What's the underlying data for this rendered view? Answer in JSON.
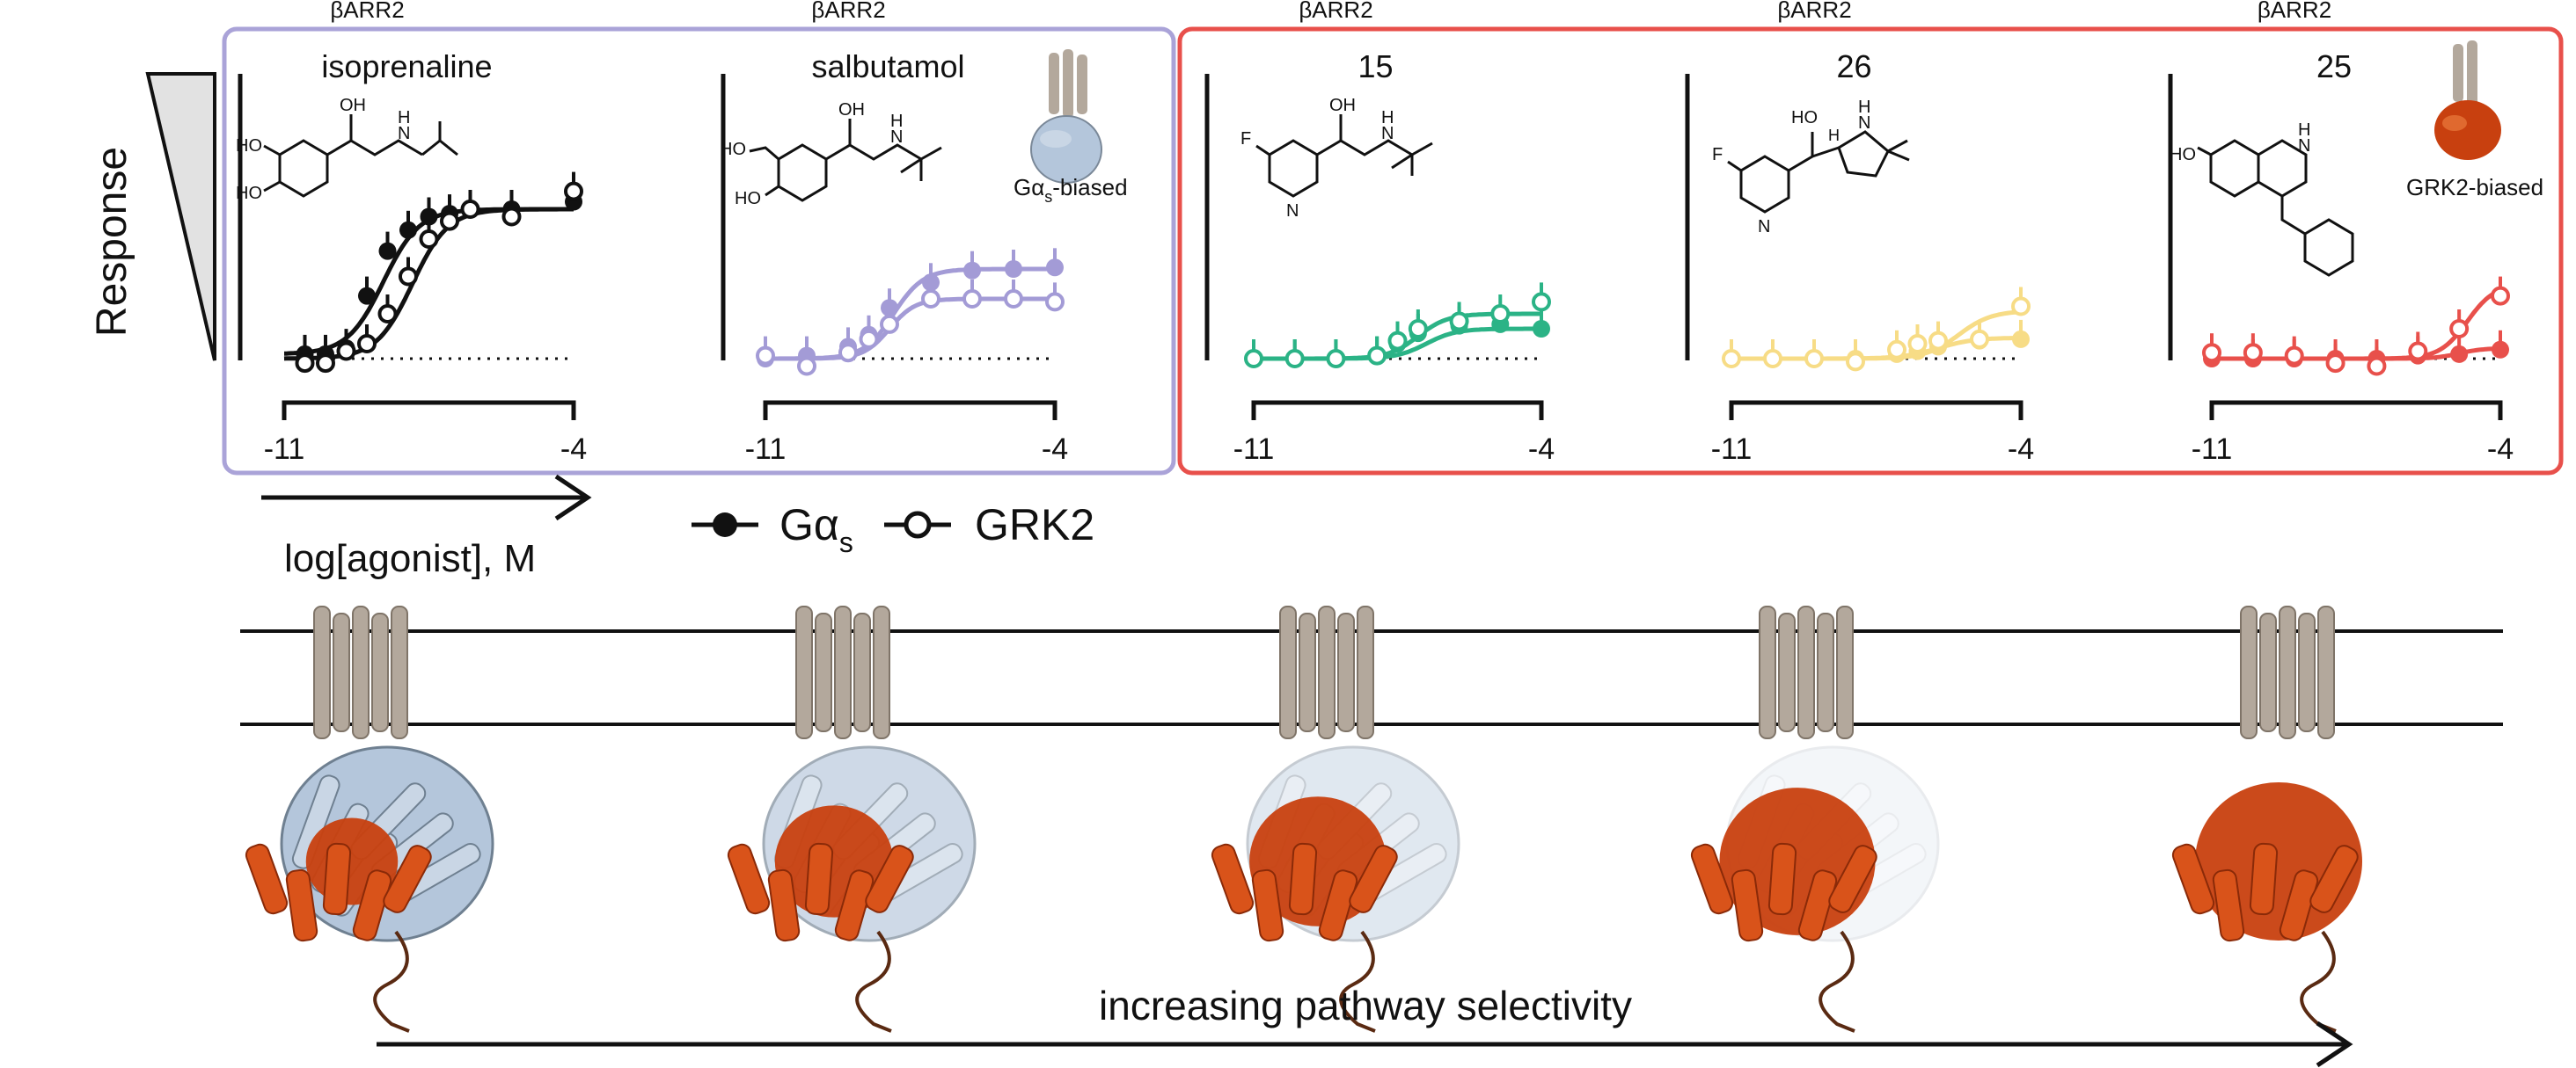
{
  "colors": {
    "isoprenaline": "#111111",
    "salbutamol": "#a39bd6",
    "c15": "#2bb386",
    "c26": "#f7dc86",
    "c25": "#e8504b",
    "box_left": "#aaa3d8",
    "box_right": "#e8504b",
    "receptor": "#b3a89c",
    "gs_protein": "#b4c6db",
    "grk2_protein": "#c8400f"
  },
  "response_label": "Response",
  "xaxis_label": "log[agonist], M",
  "legend": {
    "gs": "Gα",
    "gs_sub": "s",
    "grk2": "GRK2"
  },
  "bias_labels": {
    "gs_biased": "Gα",
    "gs_biased_sub": "s",
    "gs_biased_suffix": "-biased",
    "grk2_biased": "GRK2-biased"
  },
  "bottom_arrow_label": "increasing pathway selectivity",
  "chart_data": [
    {
      "type": "line",
      "title": "isoprenaline",
      "top_label": "βARR2",
      "structure_icons": [
        "hydroxyl-OH",
        "hydroxyl-HO",
        "hydroxyl-OH",
        "amine-NH"
      ],
      "structure_text": {
        "oh1": "HO",
        "oh2": "HO",
        "oh3": "OH",
        "nh": "N",
        "h": "H"
      },
      "xlim": [
        -11,
        -4
      ],
      "xticks": [
        "-11",
        "-4"
      ],
      "ylim": [
        0,
        1.2
      ],
      "color": "#111111",
      "series": [
        {
          "name": "Gαs",
          "filled": true,
          "x": [
            -10.5,
            -10,
            -9.5,
            -9,
            -8.5,
            -8,
            -7.5,
            -7,
            -6.5,
            -5.5,
            -4
          ],
          "y": [
            0.03,
            0.03,
            0.07,
            0.42,
            0.72,
            0.86,
            0.95,
            0.97,
            1.0,
            1.0,
            1.05
          ],
          "fit": {
            "bottom": 0.03,
            "top": 1.0,
            "logEC50": -8.6,
            "hill": 1.0
          }
        },
        {
          "name": "GRK2",
          "filled": false,
          "x": [
            -10.5,
            -10,
            -9.5,
            -9,
            -8.5,
            -8,
            -7.5,
            -7,
            -6.5,
            -5.5,
            -4
          ],
          "y": [
            -0.03,
            -0.03,
            0.05,
            0.1,
            0.3,
            0.55,
            0.8,
            0.92,
            1.0,
            0.95,
            1.12
          ],
          "fit": {
            "bottom": 0.0,
            "top": 1.0,
            "logEC50": -7.9,
            "hill": 1.0
          }
        }
      ]
    },
    {
      "type": "line",
      "title": "salbutamol",
      "top_label": "βARR2",
      "structure_text": {
        "oh1": "HO",
        "oh2": "HO",
        "oh3": "OH",
        "nh": "N",
        "h": "H"
      },
      "xlim": [
        -11,
        -4
      ],
      "xticks": [
        "-11",
        "-4"
      ],
      "ylim": [
        0,
        1.2
      ],
      "color": "#a39bd6",
      "series": [
        {
          "name": "Gαs",
          "filled": true,
          "x": [
            -11,
            -10,
            -9,
            -8.5,
            -8,
            -7,
            -6,
            -5,
            -4
          ],
          "y": [
            0.0,
            0.02,
            0.08,
            0.16,
            0.34,
            0.51,
            0.59,
            0.6,
            0.61
          ],
          "fit": {
            "bottom": 0.0,
            "top": 0.6,
            "logEC50": -7.9,
            "hill": 1.2
          }
        },
        {
          "name": "GRK2",
          "filled": false,
          "x": [
            -11,
            -10,
            -9,
            -8.5,
            -8,
            -7,
            -6,
            -5,
            -4
          ],
          "y": [
            0.02,
            -0.05,
            0.04,
            0.13,
            0.23,
            0.4,
            0.4,
            0.4,
            0.38
          ],
          "fit": {
            "bottom": 0.0,
            "top": 0.4,
            "logEC50": -8.0,
            "hill": 1.4
          }
        }
      ]
    },
    {
      "type": "line",
      "title": "15",
      "top_label": "βARR2",
      "structure_text": {
        "f": "F",
        "n": "N",
        "oh": "OH",
        "nh": "N",
        "h": "H"
      },
      "xlim": [
        -11,
        -4
      ],
      "xticks": [
        "-11",
        "-4"
      ],
      "ylim": [
        0,
        1.2
      ],
      "color": "#2bb386",
      "series": [
        {
          "name": "Gαs",
          "filled": true,
          "x": [
            -11,
            -10,
            -9,
            -8,
            -7.5,
            -7,
            -6,
            -5,
            -4
          ],
          "y": [
            0.0,
            0.0,
            0.0,
            0.02,
            0.1,
            0.17,
            0.22,
            0.23,
            0.2
          ],
          "fit": {
            "bottom": 0.0,
            "top": 0.2,
            "logEC50": -6.8,
            "hill": 1.2
          }
        },
        {
          "name": "GRK2",
          "filled": false,
          "x": [
            -11,
            -10,
            -9,
            -8,
            -7.5,
            -7,
            -6,
            -5,
            -4
          ],
          "y": [
            0.0,
            0.0,
            0.0,
            0.02,
            0.12,
            0.2,
            0.25,
            0.3,
            0.38
          ],
          "fit": {
            "bottom": 0.0,
            "top": 0.3,
            "logEC50": -7.0,
            "hill": 1.2
          }
        }
      ]
    },
    {
      "type": "line",
      "title": "26",
      "top_label": "βARR2",
      "structure_text": {
        "f": "F",
        "n": "N",
        "ho": "HO",
        "nh": "N",
        "h": "H",
        "h2": "H"
      },
      "xlim": [
        -11,
        -4
      ],
      "xticks": [
        "-11",
        "-4"
      ],
      "ylim": [
        0,
        1.2
      ],
      "color": "#f7dc86",
      "series": [
        {
          "name": "Gαs",
          "filled": true,
          "x": [
            -11,
            -10,
            -9,
            -8,
            -7,
            -6.5,
            -6,
            -5,
            -4
          ],
          "y": [
            0.0,
            0.0,
            0.0,
            0.0,
            0.03,
            0.05,
            0.08,
            0.12,
            0.13
          ],
          "fit": {
            "bottom": 0.0,
            "top": 0.14,
            "logEC50": -6.0,
            "hill": 1.0
          }
        },
        {
          "name": "GRK2",
          "filled": false,
          "x": [
            -11,
            -10,
            -9,
            -8,
            -7,
            -6.5,
            -6,
            -5,
            -4
          ],
          "y": [
            0.0,
            0.0,
            0.0,
            -0.02,
            0.06,
            0.1,
            0.12,
            0.13,
            0.35
          ],
          "fit": {
            "bottom": 0.0,
            "top": 0.32,
            "logEC50": -5.5,
            "hill": 1.1
          }
        }
      ]
    },
    {
      "type": "line",
      "title": "25",
      "top_label": "βARR2",
      "structure_text": {
        "ho": "HO",
        "nh": "N",
        "h": "H"
      },
      "xlim": [
        -11,
        -4
      ],
      "xticks": [
        "-11",
        "-4"
      ],
      "ylim": [
        0,
        1.2
      ],
      "color": "#e8504b",
      "series": [
        {
          "name": "Gαs",
          "filled": true,
          "x": [
            -11,
            -10,
            -9,
            -8,
            -7,
            -6,
            -5,
            -4
          ],
          "y": [
            0.0,
            0.0,
            0.0,
            0.0,
            0.0,
            0.02,
            0.03,
            0.06
          ],
          "fit": {
            "bottom": 0.0,
            "top": 0.07,
            "logEC50": -5.0,
            "hill": 1.5
          }
        },
        {
          "name": "GRK2",
          "filled": false,
          "x": [
            -11,
            -10,
            -9,
            -8,
            -7,
            -6,
            -5,
            -4
          ],
          "y": [
            0.04,
            0.04,
            0.02,
            -0.03,
            -0.05,
            0.05,
            0.2,
            0.42
          ],
          "fit": {
            "bottom": 0.0,
            "top": 0.5,
            "logEC50": -4.8,
            "hill": 1.3
          }
        }
      ]
    }
  ]
}
